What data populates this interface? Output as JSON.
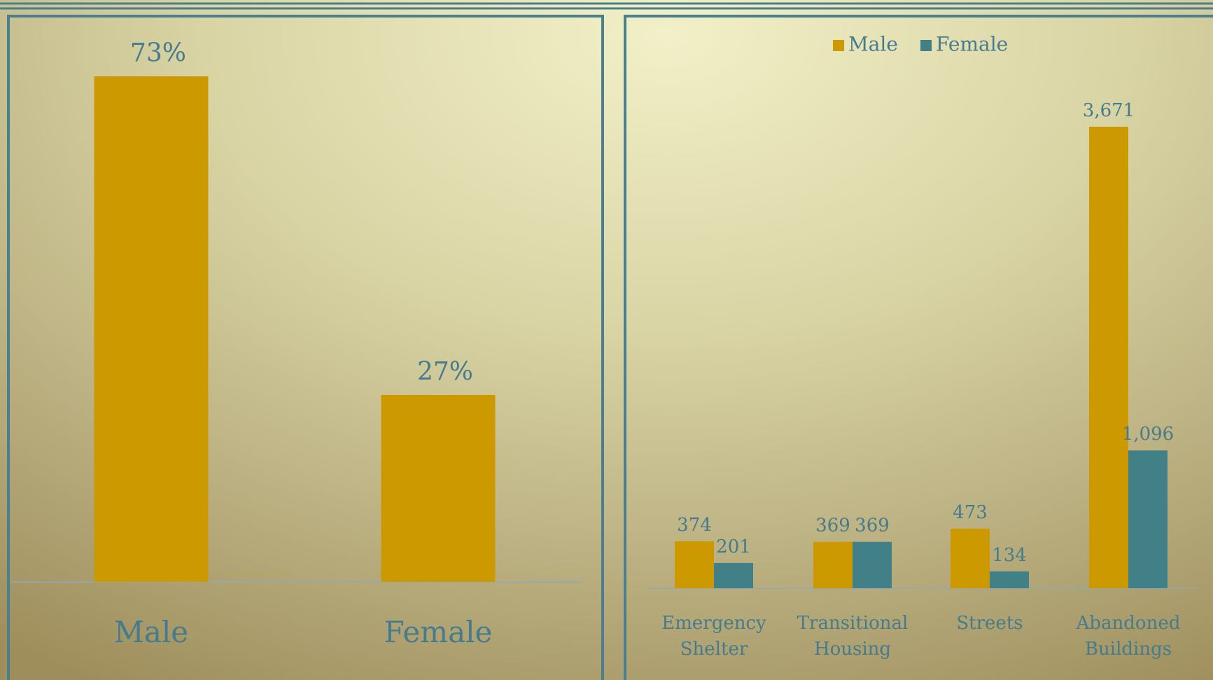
{
  "chart_data": [
    {
      "type": "bar",
      "categories": [
        "Male",
        "Female"
      ],
      "values": [
        73,
        27
      ],
      "value_labels": [
        "73%",
        "27%"
      ],
      "color": "#cc9900"
    },
    {
      "type": "bar",
      "categories": [
        "Emergency Shelter",
        "Transitional Housing",
        "Streets",
        "Abandoned Buildings"
      ],
      "series": [
        {
          "name": "Male",
          "color": "#cc9900",
          "values": [
            374,
            369,
            473,
            3671
          ],
          "value_labels": [
            "374",
            "369",
            "473",
            "3,671"
          ]
        },
        {
          "name": "Female",
          "color": "#428088",
          "values": [
            201,
            369,
            134,
            1096
          ],
          "value_labels": [
            "201",
            "369",
            "134",
            "1,096"
          ]
        }
      ],
      "legend": "top"
    }
  ]
}
